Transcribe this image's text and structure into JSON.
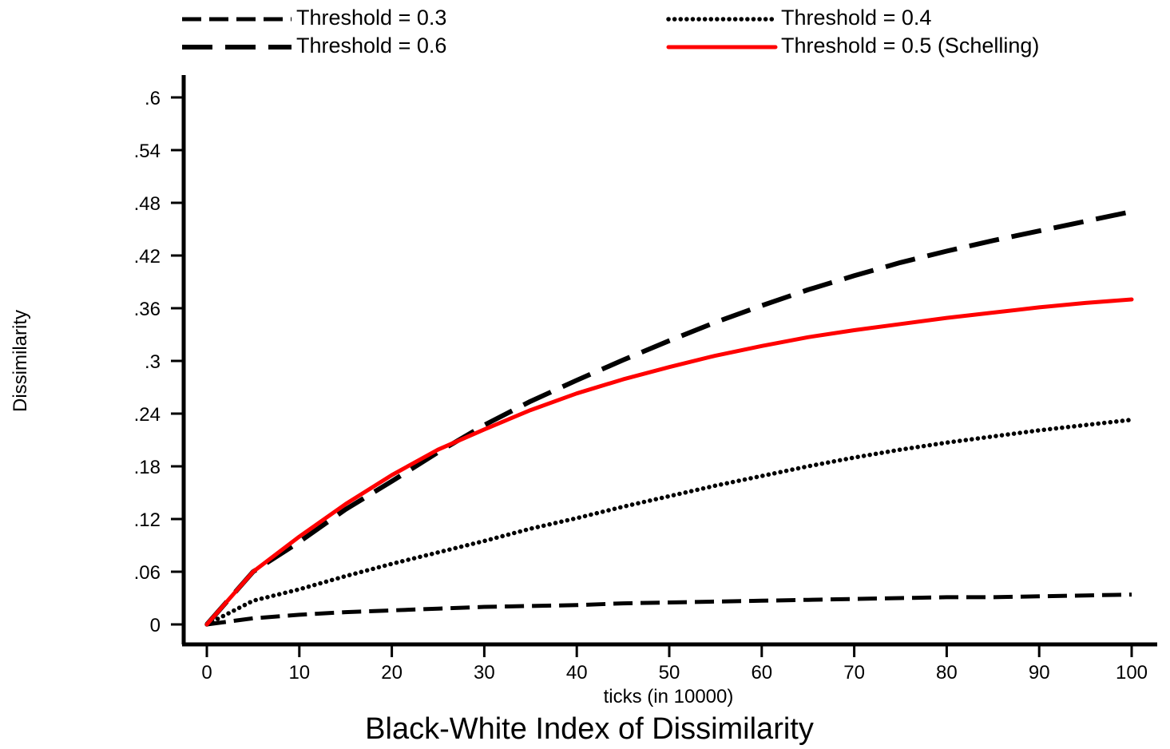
{
  "chart_data": {
    "type": "line",
    "title": "Black-White Index of Dissimilarity",
    "xlabel": "ticks (in 10000)",
    "ylabel": "Dissimilarity",
    "xlim": [
      0,
      100
    ],
    "ylim": [
      0,
      0.6
    ],
    "x_ticks": [
      0,
      10,
      20,
      30,
      40,
      50,
      60,
      70,
      80,
      90,
      100
    ],
    "x_tick_labels": [
      "0",
      "10",
      "20",
      "30",
      "40",
      "50",
      "60",
      "70",
      "80",
      "90",
      "100"
    ],
    "y_ticks": [
      0,
      0.06,
      0.12,
      0.18,
      0.24,
      0.3,
      0.36,
      0.42,
      0.48,
      0.54,
      0.6
    ],
    "y_tick_labels": [
      "0",
      ".06",
      ".12",
      ".18",
      ".24",
      ".3",
      ".36",
      ".42",
      ".48",
      ".54",
      ".6"
    ],
    "grid": false,
    "legend_position": "top",
    "x": [
      0,
      5,
      10,
      15,
      20,
      25,
      30,
      35,
      40,
      45,
      50,
      55,
      60,
      65,
      70,
      75,
      80,
      85,
      90,
      95,
      100
    ],
    "series": [
      {
        "name": "Threshold = 0.3",
        "color": "#000000",
        "style": "dashed",
        "values": [
          0,
          0.007,
          0.011,
          0.014,
          0.016,
          0.018,
          0.02,
          0.021,
          0.022,
          0.024,
          0.025,
          0.026,
          0.027,
          0.028,
          0.029,
          0.03,
          0.031,
          0.031,
          0.032,
          0.033,
          0.034
        ]
      },
      {
        "name": "Threshold = 0.4",
        "color": "#000000",
        "style": "dotted",
        "values": [
          0,
          0.027,
          0.04,
          0.055,
          0.069,
          0.082,
          0.095,
          0.109,
          0.121,
          0.134,
          0.146,
          0.158,
          0.169,
          0.18,
          0.19,
          0.199,
          0.207,
          0.214,
          0.221,
          0.227,
          0.233
        ]
      },
      {
        "name": "Threshold = 0.6",
        "color": "#000000",
        "style": "longdash",
        "values": [
          0,
          0.06,
          0.094,
          0.131,
          0.163,
          0.196,
          0.227,
          0.254,
          0.278,
          0.301,
          0.323,
          0.344,
          0.363,
          0.381,
          0.397,
          0.412,
          0.425,
          0.437,
          0.448,
          0.459,
          0.47
        ]
      },
      {
        "name": "Threshold = 0.5 (Schelling)",
        "color": "#ff0000",
        "style": "solid",
        "values": [
          0,
          0.06,
          0.1,
          0.137,
          0.17,
          0.199,
          0.222,
          0.244,
          0.263,
          0.279,
          0.293,
          0.306,
          0.317,
          0.327,
          0.335,
          0.342,
          0.349,
          0.355,
          0.361,
          0.366,
          0.37
        ]
      }
    ]
  }
}
